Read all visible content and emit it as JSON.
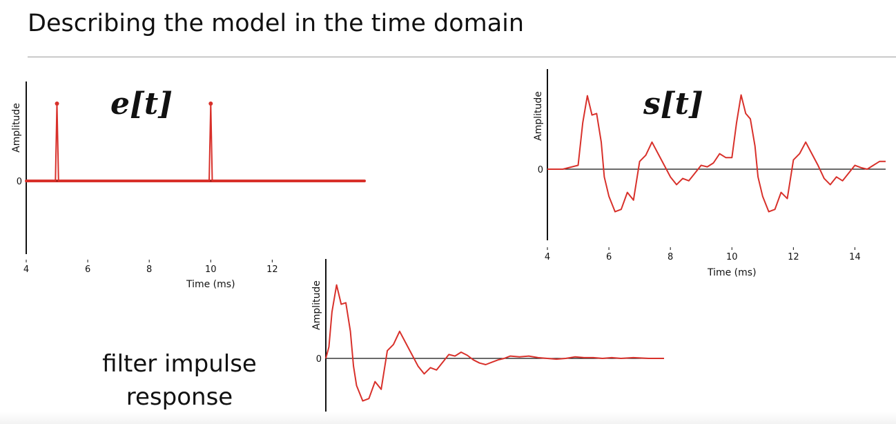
{
  "slide": {
    "title": "Describing the model in the time domain",
    "caption_line1": "filter impulse",
    "caption_line2": "response"
  },
  "colors": {
    "signal": "#d8302a",
    "axis": "#111111"
  },
  "chart_data": [
    {
      "type": "line",
      "label": "e[t]",
      "ylabel": "Amplitude",
      "xlabel": "Time (ms)",
      "xlim": [
        4,
        15
      ],
      "ylim": [
        -1,
        1.1
      ],
      "xticks": [
        4,
        6,
        8,
        10,
        12
      ],
      "yticks": [
        0
      ],
      "grid": false,
      "series": [
        {
          "x": [
            4,
            4.95,
            5,
            5.05,
            9.95,
            10,
            10.05,
            15
          ],
          "y": [
            0,
            0,
            1,
            0,
            0,
            1,
            0,
            0
          ]
        }
      ],
      "markers": [
        {
          "x": 5,
          "y": 1
        },
        {
          "x": 10,
          "y": 1
        }
      ]
    },
    {
      "type": "line",
      "label": "s[t]",
      "ylabel": "Amplitude",
      "xlabel": "Time (ms)",
      "xlim": [
        4,
        15
      ],
      "ylim": [
        -1,
        1.1
      ],
      "xticks": [
        4,
        6,
        8,
        10,
        12,
        14
      ],
      "yticks": [
        0
      ],
      "grid": false,
      "series": [
        {
          "x": [
            4,
            4.5,
            5.0,
            5.15,
            5.3,
            5.45,
            5.6,
            5.75,
            5.85,
            6.0,
            6.2,
            6.4,
            6.6,
            6.8,
            7.0,
            7.2,
            7.4,
            7.6,
            7.8,
            8.0,
            8.2,
            8.4,
            8.6,
            8.8,
            9.0,
            9.2,
            9.4,
            9.6,
            9.8,
            10.0,
            10.15,
            10.3,
            10.45,
            10.6,
            10.75,
            10.85,
            11.0,
            11.2,
            11.4,
            11.6,
            11.8,
            12.0,
            12.2,
            12.4,
            12.6,
            12.8,
            13.0,
            13.2,
            13.4,
            13.6,
            13.8,
            14.0,
            14.2,
            14.4,
            14.6,
            14.8,
            15.0
          ],
          "y": [
            0,
            0,
            0.05,
            0.6,
            0.95,
            0.7,
            0.72,
            0.35,
            -0.1,
            -0.35,
            -0.55,
            -0.52,
            -0.3,
            -0.4,
            0.1,
            0.18,
            0.35,
            0.2,
            0.05,
            -0.1,
            -0.2,
            -0.12,
            -0.15,
            -0.05,
            0.05,
            0.03,
            0.08,
            0.2,
            0.15,
            0.15,
            0.6,
            0.96,
            0.72,
            0.65,
            0.3,
            -0.1,
            -0.35,
            -0.55,
            -0.52,
            -0.3,
            -0.38,
            0.12,
            0.2,
            0.35,
            0.2,
            0.05,
            -0.12,
            -0.2,
            -0.1,
            -0.15,
            -0.05,
            0.05,
            0.02,
            0.0,
            0.05,
            0.1,
            0.1
          ]
        }
      ]
    },
    {
      "type": "line",
      "label": "filter impulse response",
      "ylabel": "Amplitude",
      "xlabel": "",
      "xlim": [
        0,
        11
      ],
      "ylim": [
        -1,
        1.1
      ],
      "xticks": [],
      "yticks": [
        0
      ],
      "grid": false,
      "series": [
        {
          "x": [
            0,
            0.1,
            0.2,
            0.35,
            0.5,
            0.65,
            0.8,
            0.9,
            1.0,
            1.2,
            1.4,
            1.6,
            1.8,
            2.0,
            2.2,
            2.4,
            2.6,
            2.8,
            3.0,
            3.2,
            3.4,
            3.6,
            3.8,
            4.0,
            4.2,
            4.4,
            4.6,
            4.8,
            5.0,
            5.2,
            5.4,
            5.6,
            5.8,
            6.0,
            6.3,
            6.6,
            6.9,
            7.2,
            7.5,
            7.8,
            8.1,
            8.4,
            8.7,
            9.0,
            9.3,
            9.6,
            10.0,
            10.5,
            11.0
          ],
          "y": [
            0,
            0.15,
            0.6,
            0.95,
            0.7,
            0.72,
            0.35,
            -0.1,
            -0.35,
            -0.55,
            -0.52,
            -0.3,
            -0.4,
            0.1,
            0.18,
            0.35,
            0.2,
            0.05,
            -0.1,
            -0.2,
            -0.12,
            -0.15,
            -0.05,
            0.05,
            0.03,
            0.08,
            0.04,
            -0.02,
            -0.06,
            -0.08,
            -0.05,
            -0.02,
            0.0,
            0.03,
            0.02,
            0.03,
            0.01,
            0.0,
            -0.01,
            0.0,
            0.02,
            0.01,
            0.01,
            0.0,
            0.01,
            0.0,
            0.01,
            0.0,
            0.0
          ]
        }
      ]
    }
  ]
}
